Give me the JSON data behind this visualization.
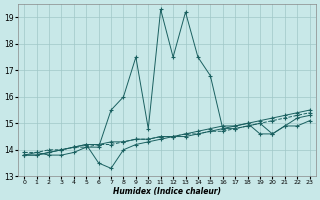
{
  "xlabel": "Humidex (Indice chaleur)",
  "bg_color": "#c8e8e8",
  "grid_color": "#a0c8c8",
  "line_color": "#1a6060",
  "xlim": [
    -0.5,
    23.5
  ],
  "ylim": [
    13.0,
    19.5
  ],
  "yticks": [
    13,
    14,
    15,
    16,
    17,
    18,
    19
  ],
  "xticks": [
    0,
    1,
    2,
    3,
    4,
    5,
    6,
    7,
    8,
    9,
    10,
    11,
    12,
    13,
    14,
    15,
    16,
    17,
    18,
    19,
    20,
    21,
    22,
    23
  ],
  "s1": [
    13.8,
    13.9,
    13.8,
    13.8,
    13.9,
    14.1,
    14.1,
    15.5,
    16.0,
    17.5,
    14.8,
    19.3,
    17.5,
    19.2,
    17.5,
    16.8,
    14.8,
    14.8,
    14.9,
    15.0,
    14.6,
    14.9,
    15.2,
    15.3
  ],
  "s2": [
    13.8,
    13.8,
    13.9,
    14.0,
    14.1,
    14.2,
    13.5,
    13.3,
    14.0,
    14.2,
    14.3,
    14.4,
    14.5,
    14.5,
    14.6,
    14.7,
    14.8,
    14.9,
    15.0,
    14.6,
    14.6,
    14.9,
    14.9,
    15.1
  ],
  "s3": [
    13.8,
    13.8,
    13.9,
    14.0,
    14.1,
    14.2,
    14.2,
    14.3,
    14.3,
    14.4,
    14.4,
    14.5,
    14.5,
    14.6,
    14.7,
    14.8,
    14.9,
    14.9,
    15.0,
    15.1,
    15.2,
    15.3,
    15.4,
    15.5
  ],
  "s4": [
    13.9,
    13.9,
    14.0,
    14.0,
    14.1,
    14.1,
    14.2,
    14.2,
    14.3,
    14.4,
    14.4,
    14.5,
    14.5,
    14.6,
    14.6,
    14.7,
    14.7,
    14.8,
    14.9,
    15.0,
    15.1,
    15.2,
    15.3,
    15.4
  ],
  "s1_style": "-",
  "s2_style": "-",
  "s3_style": "-",
  "s4_style": "--"
}
